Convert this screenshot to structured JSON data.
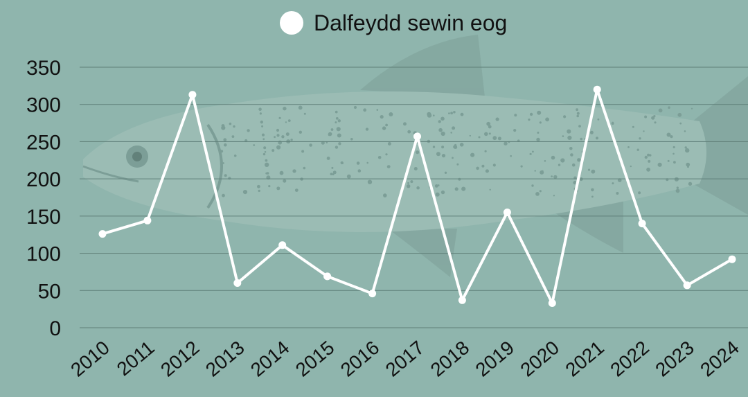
{
  "colors": {
    "background": "#8fb5ad",
    "line": "#ffffff",
    "grid": "#5f7f78",
    "text": "#111111",
    "fish_fill": "#9fbcb6",
    "fish_dark": "#6d8d86"
  },
  "chart_data": {
    "type": "line",
    "title": "",
    "xlabel": "",
    "ylabel": "",
    "categories": [
      "2010",
      "2011",
      "2012",
      "2013",
      "2014",
      "2015",
      "2016",
      "2017",
      "2018",
      "2019",
      "2020",
      "2021",
      "2022",
      "2023",
      "2024"
    ],
    "series": [
      {
        "name": "Dalfeydd sewin eog",
        "values": [
          126,
          144,
          313,
          60,
          111,
          69,
          46,
          257,
          37,
          155,
          33,
          320,
          140,
          57,
          92
        ]
      }
    ],
    "ylim": [
      0,
      350
    ],
    "yticks": [
      "0",
      "50",
      "100",
      "150",
      "200",
      "250",
      "300",
      "350"
    ],
    "grid": true,
    "legend_position": "top-center",
    "background_image": "trout-illustration"
  }
}
